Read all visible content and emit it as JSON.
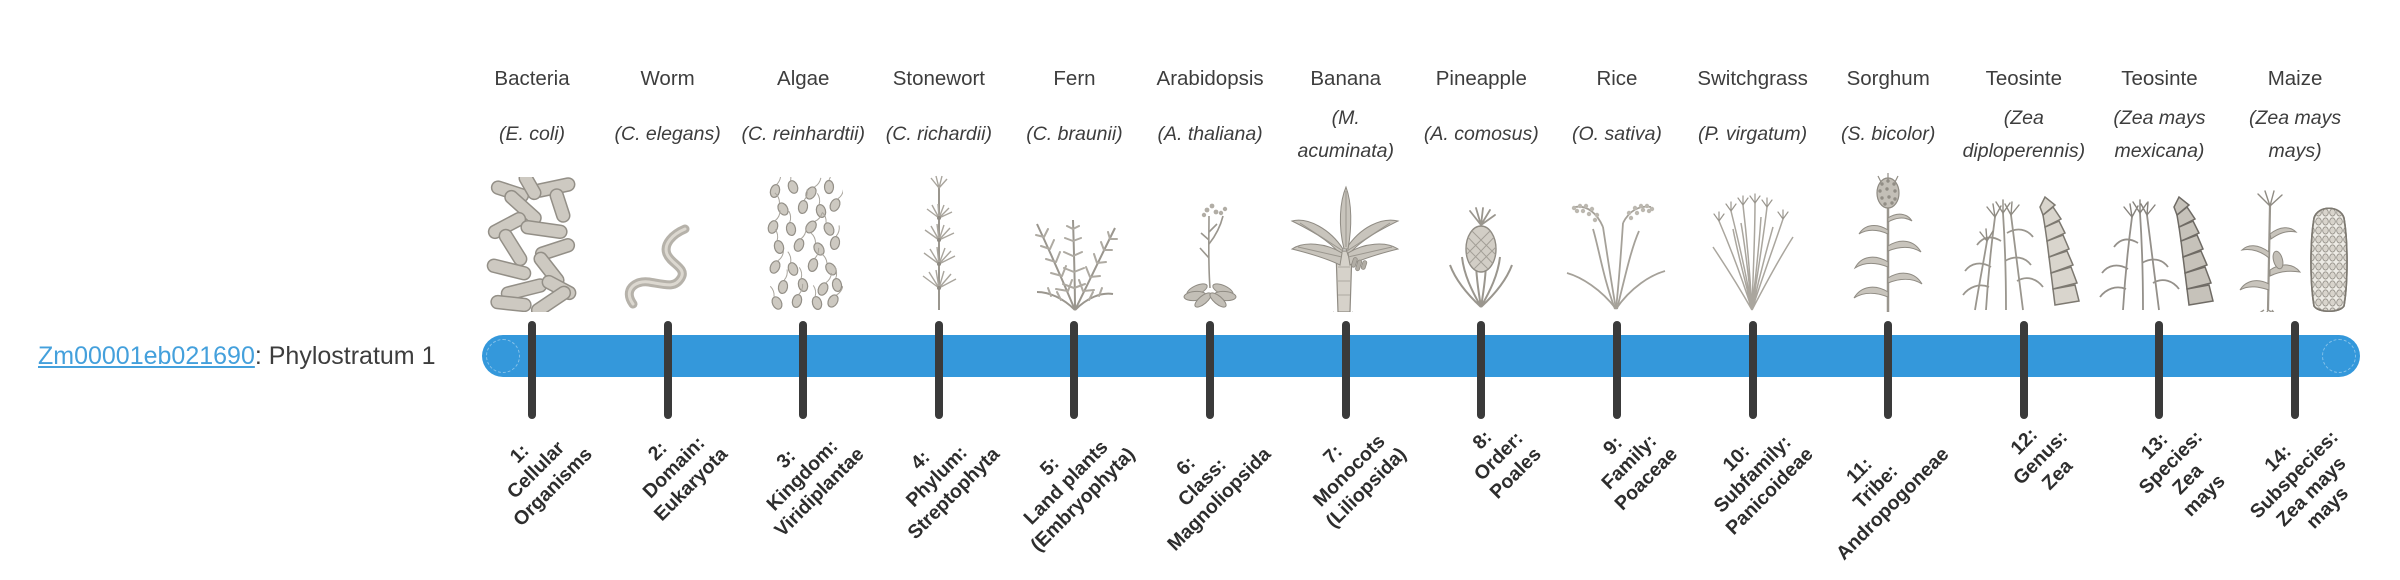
{
  "gene": {
    "id": "Zm00001eb021690",
    "suffix": ": Phylostratum 1"
  },
  "colors": {
    "bar": "#3498db",
    "tick": "#3a3a3a",
    "link": "#44a0dc",
    "label_text": "#3d3d3d",
    "stratum_text": "#2d2d2d"
  },
  "columns": [
    {
      "common_name": "Bacteria",
      "species": "(E. coli)",
      "icon": "bacteria-illustration",
      "stratum_lines": [
        "1:",
        "Cellular",
        "Organisms"
      ]
    },
    {
      "common_name": "Worm",
      "species": "(C. elegans)",
      "icon": "worm-illustration",
      "stratum_lines": [
        "2:",
        "Domain:",
        "Eukaryota"
      ]
    },
    {
      "common_name": "Algae",
      "species": "(C. reinhardtii)",
      "icon": "algae-illustration",
      "stratum_lines": [
        "3:",
        "Kingdom:",
        "Viridiplantae"
      ]
    },
    {
      "common_name": "Stonewort",
      "species": "(C. richardii)",
      "icon": "stonewort-illustration",
      "stratum_lines": [
        "4:",
        "Phylum:",
        "Streptophyta"
      ]
    },
    {
      "common_name": "Fern",
      "species": "(C. braunii)",
      "icon": "fern-illustration",
      "stratum_lines": [
        "5:",
        "Land plants",
        "(Embryophyta)"
      ]
    },
    {
      "common_name": "Arabidopsis",
      "species": "(A. thaliana)",
      "icon": "arabidopsis-illustration",
      "stratum_lines": [
        "6:",
        "Class:",
        "Magnoliopsida"
      ]
    },
    {
      "common_name": "Banana",
      "species": "(M. acuminata)",
      "icon": "banana-illustration",
      "stratum_lines": [
        "7:",
        "Monocots",
        "(Liliopsida)"
      ]
    },
    {
      "common_name": "Pineapple",
      "species": "(A. comosus)",
      "icon": "pineapple-illustration",
      "stratum_lines": [
        "8:",
        "Order:",
        "Poales"
      ]
    },
    {
      "common_name": "Rice",
      "species": "(O. sativa)",
      "icon": "rice-illustration",
      "stratum_lines": [
        "9:",
        "Family:",
        "Poaceae"
      ]
    },
    {
      "common_name": "Switchgrass",
      "species": "(P. virgatum)",
      "icon": "switchgrass-illustration",
      "stratum_lines": [
        "10:",
        "Subfamily:",
        "Panicoideae"
      ]
    },
    {
      "common_name": "Sorghum",
      "species": "(S. bicolor)",
      "icon": "sorghum-illustration",
      "stratum_lines": [
        "11:",
        "Tribe:",
        "Andropogoneae"
      ]
    },
    {
      "common_name": "Teosinte",
      "species": "(Zea diploperennis)",
      "icon": "teosinte-diploperennis-illustration",
      "stratum_lines": [
        "12:",
        "Genus:",
        "Zea"
      ]
    },
    {
      "common_name": "Teosinte",
      "species": "(Zea mays mexicana)",
      "icon": "teosinte-mexicana-illustration",
      "stratum_lines": [
        "13:",
        "Species:",
        "Zea",
        "mays"
      ]
    },
    {
      "common_name": "Maize",
      "species": "(Zea mays mays)",
      "icon": "maize-illustration",
      "stratum_lines": [
        "14:",
        "Subspecies:",
        "Zea mays",
        "mays"
      ]
    }
  ]
}
